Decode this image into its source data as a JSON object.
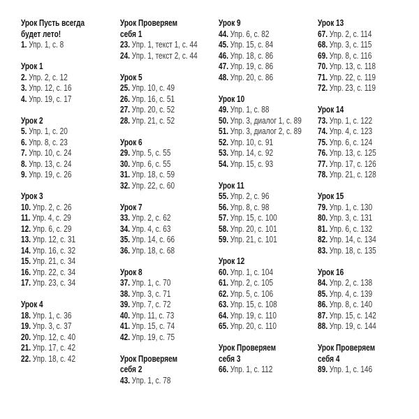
{
  "columns": [
    [
      {
        "title": [
          "Урок Пусть всегда",
          "будет лето!"
        ],
        "items": [
          {
            "num": "1.",
            "text": " Упр. 1, с. 8"
          }
        ]
      },
      {
        "title": [
          "Урок 1"
        ],
        "items": [
          {
            "num": "2.",
            "text": " Упр. 2, с. 12"
          },
          {
            "num": "3.",
            "text": " Упр. 12, с. 16"
          },
          {
            "num": "4.",
            "text": " Упр. 19, с. 17"
          }
        ]
      },
      {
        "title": [
          "Урок 2"
        ],
        "items": [
          {
            "num": "5.",
            "text": " Упр. 1, с. 20"
          },
          {
            "num": "6.",
            "text": " Упр. 8, с. 23"
          },
          {
            "num": "7.",
            "text": " Упр. 10, с. 24"
          },
          {
            "num": "8.",
            "text": " Упр. 13, с. 24"
          },
          {
            "num": "9.",
            "text": " Упр. 19, с. 26"
          }
        ]
      },
      {
        "title": [
          "Урок 3"
        ],
        "items": [
          {
            "num": "10.",
            "text": " Упр. 2, с. 26"
          },
          {
            "num": "11.",
            "text": " Упр. 4, с. 29"
          },
          {
            "num": "12.",
            "text": " Упр. 6, с. 29"
          },
          {
            "num": "13.",
            "text": " Упр. 12, с. 31"
          },
          {
            "num": "14.",
            "text": " Упр. 16, с. 32"
          },
          {
            "num": "15.",
            "text": " Упр. 21, с. 34"
          },
          {
            "num": "16.",
            "text": " Упр. 22, с. 34"
          },
          {
            "num": "17.",
            "text": " Упр. 23, с. 34"
          }
        ]
      },
      {
        "title": [
          "Урок 4"
        ],
        "items": [
          {
            "num": "18.",
            "text": " Упр. 1, с. 36"
          },
          {
            "num": "19.",
            "text": " Упр. 3, с. 37"
          },
          {
            "num": "20.",
            "text": " Упр. 12, с. 40"
          },
          {
            "num": "21.",
            "text": " Упр. 17, с. 42"
          },
          {
            "num": "22.",
            "text": " Упр. 18, с. 42"
          }
        ]
      }
    ],
    [
      {
        "title": [
          "Урок Проверяем",
          "себя 1"
        ],
        "items": [
          {
            "num": "23.",
            "text": " Упр. 1, текст 1, с. 44"
          },
          {
            "num": "24.",
            "text": " Упр. 1, текст 2, с. 44"
          }
        ]
      },
      {
        "title": [
          "Урок 5"
        ],
        "items": [
          {
            "num": "25.",
            "text": " Упр. 10, с. 49"
          },
          {
            "num": "26.",
            "text": " Упр. 16, с. 51"
          },
          {
            "num": "27.",
            "text": " Упр. 20, с. 52"
          },
          {
            "num": "28.",
            "text": " Упр. 21, с. 52"
          }
        ]
      },
      {
        "title": [
          "Урок 6"
        ],
        "items": [
          {
            "num": "29.",
            "text": " Упр. 5, с. 55"
          },
          {
            "num": "30.",
            "text": " Упр. 6, с. 55"
          },
          {
            "num": "31.",
            "text": " Упр. 18, с. 59"
          },
          {
            "num": "32.",
            "text": " Упр. 22, с. 60"
          }
        ]
      },
      {
        "title": [
          "Урок 7"
        ],
        "items": [
          {
            "num": "33.",
            "text": " Упр. 2, с. 62"
          },
          {
            "num": "34.",
            "text": " Упр. 4, с. 63"
          },
          {
            "num": "35.",
            "text": " Упр. 14, с. 66"
          },
          {
            "num": "36.",
            "text": " Упр. 18, с. 68"
          }
        ]
      },
      {
        "title": [
          "Урок 8"
        ],
        "items": [
          {
            "num": "37.",
            "text": " Упр. 1, с. 70"
          },
          {
            "num": "38.",
            "text": " Упр. 3, с. 71"
          },
          {
            "num": "39.",
            "text": " Упр. 7, с. 72"
          },
          {
            "num": "40.",
            "text": " Упр. 11, с. 73"
          },
          {
            "num": "41.",
            "text": " Упр. 15, с. 74"
          },
          {
            "num": "42.",
            "text": " Упр. 19, с. 75"
          }
        ]
      },
      {
        "title": [
          "Урок Проверяем",
          "себя 2"
        ],
        "items": [
          {
            "num": "43.",
            "text": " Упр. 1, с. 78"
          }
        ]
      }
    ],
    [
      {
        "title": [
          "Урок 9"
        ],
        "items": [
          {
            "num": "44.",
            "text": " Упр. 6, с. 82"
          },
          {
            "num": "45.",
            "text": " Упр. 15, с. 84"
          },
          {
            "num": "46.",
            "text": " Упр. 18, с. 86"
          },
          {
            "num": "47.",
            "text": " Упр. 19, с. 86"
          },
          {
            "num": "48.",
            "text": " Упр. 20, с. 86"
          }
        ]
      },
      {
        "title": [
          "Урок 10"
        ],
        "items": [
          {
            "num": "49.",
            "text": " Упр. 1, с. 88"
          },
          {
            "num": "50.",
            "text": " Упр. 3, диалог 1, с. 89"
          },
          {
            "num": "51.",
            "text": " Упр. 3, диалог 2, с. 89"
          },
          {
            "num": "52.",
            "text": " Упр. 10, с. 91"
          },
          {
            "num": "53.",
            "text": " Упр. 14, с. 92"
          },
          {
            "num": "54.",
            "text": " Упр. 15, с. 93"
          }
        ]
      },
      {
        "title": [
          "Урок 11"
        ],
        "items": [
          {
            "num": "55.",
            "text": " Упр. 2, с. 96"
          },
          {
            "num": "56.",
            "text": " Упр. 8, с. 98"
          },
          {
            "num": "57.",
            "text": " Упр. 15, с. 100"
          },
          {
            "num": "58.",
            "text": " Упр. 20, с. 101"
          },
          {
            "num": "59.",
            "text": " Упр. 21, с. 101"
          }
        ]
      },
      {
        "title": [
          "Урок 12"
        ],
        "items": [
          {
            "num": "60.",
            "text": " Упр. 1, с. 104"
          },
          {
            "num": "61.",
            "text": " Упр. 2, с. 105"
          },
          {
            "num": "62.",
            "text": " Упр. 5, с. 106"
          },
          {
            "num": "63.",
            "text": " Упр. 15, с. 108"
          },
          {
            "num": "64.",
            "text": " Упр. 19, с. 110"
          },
          {
            "num": "65.",
            "text": " Упр. 20, с. 110"
          }
        ]
      },
      {
        "title": [
          "Урок Проверяем",
          "себя 3"
        ],
        "items": [
          {
            "num": "66.",
            "text": " Упр. 1, с. 112"
          }
        ]
      }
    ],
    [
      {
        "title": [
          "Урок 13"
        ],
        "items": [
          {
            "num": "67.",
            "text": " Упр. 2, с. 114"
          },
          {
            "num": "68.",
            "text": " Упр. 3, с. 115"
          },
          {
            "num": "69.",
            "text": " Упр. 8, с. 116"
          },
          {
            "num": "70.",
            "text": " Упр. 13, с. 118"
          },
          {
            "num": "71.",
            "text": " Упр. 22, с. 119"
          },
          {
            "num": "72.",
            "text": " Упр. 23, с. 119"
          }
        ]
      },
      {
        "title": [
          "Урок 14"
        ],
        "items": [
          {
            "num": "73.",
            "text": " Упр. 1, с. 122"
          },
          {
            "num": "74.",
            "text": " Упр. 4, с. 123"
          },
          {
            "num": "75.",
            "text": " Упр. 6, с. 124"
          },
          {
            "num": "76.",
            "text": " Упр. 13, с. 125"
          },
          {
            "num": "77.",
            "text": " Упр. 17, с. 126"
          },
          {
            "num": "78.",
            "text": " Упр. 21, с. 128"
          }
        ]
      },
      {
        "title": [
          "Урок 15"
        ],
        "items": [
          {
            "num": "79.",
            "text": " Упр. 1, с. 130"
          },
          {
            "num": "80.",
            "text": " Упр. 3, с. 131"
          },
          {
            "num": "81.",
            "text": " Упр. 6, с. 132"
          },
          {
            "num": "82.",
            "text": " Упр. 14, с. 134"
          },
          {
            "num": "83.",
            "text": " Упр. 18, с. 135"
          }
        ]
      },
      {
        "title": [
          "Урок 16"
        ],
        "items": [
          {
            "num": "84.",
            "text": " Упр. 2, с. 138"
          },
          {
            "num": "85.",
            "text": " Упр. 4, с. 139"
          },
          {
            "num": "86.",
            "text": " Упр. 8, с. 140"
          },
          {
            "num": "87.",
            "text": " Упр. 15, с. 142"
          },
          {
            "num": "88.",
            "text": " Упр. 19, с. 144"
          }
        ]
      },
      {
        "title": [
          "Урок Проверяем",
          "себя 4"
        ],
        "items": [
          {
            "num": "89.",
            "text": " Упр. 1, с. 146"
          }
        ]
      }
    ]
  ]
}
